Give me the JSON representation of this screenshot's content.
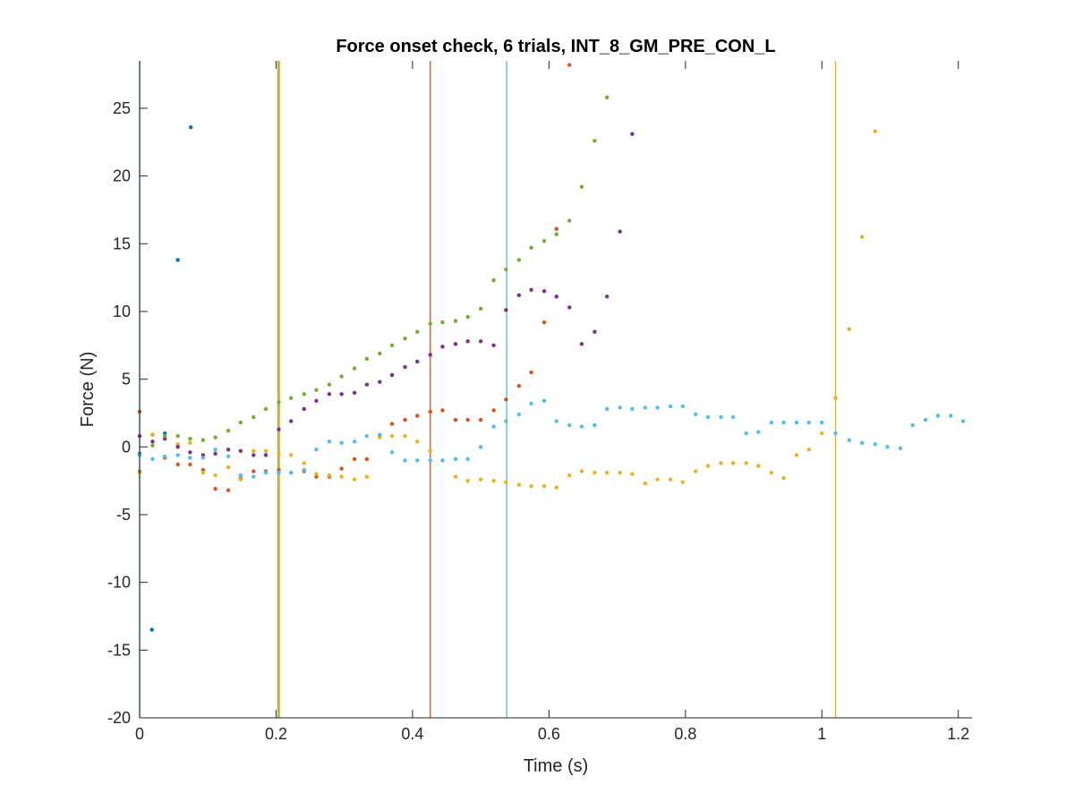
{
  "chart_data": {
    "type": "scatter",
    "title": "Force onset check, 6 trials, INT_8_GM_PRE_CON_L",
    "xlabel": "Time (s)",
    "ylabel": "Force (N)",
    "xlim": [
      0,
      1.22
    ],
    "ylim": [
      -20,
      28.5
    ],
    "grid": false,
    "legend": "none",
    "xticks": [
      0,
      0.2,
      0.4,
      0.6,
      0.8,
      1,
      1.2
    ],
    "xtick_labels": [
      "0",
      "0.2",
      "0.4",
      "0.6",
      "0.8",
      "1",
      "1.2"
    ],
    "yticks": [
      -20,
      -15,
      -10,
      -5,
      0,
      5,
      10,
      15,
      20,
      25
    ],
    "ytick_labels": [
      "-20",
      "-15",
      "-10",
      "-5",
      "0",
      "5",
      "10",
      "15",
      "20",
      "25"
    ],
    "onset_lines": [
      {
        "x": 0.0,
        "color": "#0072BD"
      },
      {
        "x": 0.203,
        "color": "#77AC30"
      },
      {
        "x": 0.205,
        "color": "#EDB120"
      },
      {
        "x": 0.426,
        "color": "#D95319"
      },
      {
        "x": 0.538,
        "color": "#4DBEEE"
      },
      {
        "x": 1.02,
        "color": "#EDB120"
      }
    ],
    "series": [
      {
        "color": "#0072BD",
        "x": [
          0.0,
          0.018,
          0.037,
          0.056,
          0.075
        ],
        "y": [
          -0.5,
          -13.5,
          1.0,
          13.8,
          23.6
        ]
      },
      {
        "color": "#D95319",
        "x": [
          0.0,
          0.019,
          0.037,
          0.056,
          0.074,
          0.093,
          0.111,
          0.13,
          0.148,
          0.167,
          0.185,
          0.204,
          0.222,
          0.241,
          0.259,
          0.278,
          0.296,
          0.315,
          0.333,
          0.352,
          0.37,
          0.389,
          0.407,
          0.426,
          0.444,
          0.463,
          0.481,
          0.5,
          0.519,
          0.537,
          0.556,
          0.574,
          0.593,
          0.611,
          0.63
        ],
        "y": [
          2.6,
          0.9,
          -0.8,
          -1.3,
          -1.3,
          -1.7,
          -3.1,
          -3.2,
          -2.3,
          -1.8,
          -1.8,
          -1.7,
          -1.9,
          -1.8,
          -2.2,
          -2.2,
          -1.6,
          -0.9,
          -0.9,
          0.8,
          1.7,
          2.0,
          2.3,
          2.6,
          2.7,
          2.0,
          2.0,
          2.0,
          2.7,
          3.5,
          4.5,
          5.5,
          9.2,
          16.1,
          28.2
        ]
      },
      {
        "color": "#EDB120",
        "x": [
          0.0,
          0.019,
          0.037,
          0.056,
          0.074,
          0.093,
          0.111,
          0.13,
          0.148,
          0.167,
          0.185,
          0.204,
          0.222,
          0.241,
          0.259,
          0.278,
          0.296,
          0.315,
          0.333,
          0.352,
          0.37,
          0.389,
          0.407,
          0.426,
          0.444,
          0.463,
          0.481,
          0.5,
          0.519,
          0.537,
          0.556,
          0.574,
          0.593,
          0.611,
          0.63,
          0.648,
          0.667,
          0.685,
          0.704,
          0.722,
          0.741,
          0.759,
          0.778,
          0.796,
          0.815,
          0.833,
          0.852,
          0.87,
          0.889,
          0.907,
          0.926,
          0.944,
          0.963,
          0.981,
          1.0,
          1.02,
          1.04,
          1.059,
          1.078
        ],
        "y": [
          -1.9,
          0.9,
          0.6,
          0.2,
          0.3,
          -1.9,
          -2.1,
          -1.5,
          -2.4,
          -0.3,
          -0.3,
          -0.5,
          -0.6,
          -1.2,
          -2.0,
          -2.1,
          -2.2,
          -2.4,
          -2.2,
          0.7,
          0.8,
          0.8,
          0.4,
          -0.3,
          -1.0,
          -2.2,
          -2.5,
          -2.4,
          -2.5,
          -2.6,
          -2.8,
          -2.9,
          -2.9,
          -3.0,
          -2.1,
          -1.8,
          -1.9,
          -1.9,
          -1.9,
          -2.0,
          -2.7,
          -2.4,
          -2.4,
          -2.6,
          -1.8,
          -1.4,
          -1.2,
          -1.2,
          -1.2,
          -1.4,
          -1.9,
          -2.3,
          -0.6,
          -0.2,
          1.0,
          3.6,
          8.7,
          15.5,
          23.3
        ]
      },
      {
        "color": "#7E2F8E",
        "x": [
          0.0,
          0.019,
          0.037,
          0.056,
          0.074,
          0.093,
          0.111,
          0.13,
          0.148,
          0.167,
          0.185,
          0.204,
          0.222,
          0.241,
          0.259,
          0.278,
          0.296,
          0.315,
          0.333,
          0.352,
          0.37,
          0.389,
          0.407,
          0.426,
          0.444,
          0.463,
          0.481,
          0.5,
          0.519,
          0.537,
          0.556,
          0.574,
          0.593,
          0.611,
          0.63,
          0.648,
          0.667,
          0.685,
          0.704,
          0.722
        ],
        "y": [
          0.8,
          0.4,
          0.6,
          0.0,
          -0.4,
          -0.6,
          -0.5,
          -0.2,
          -0.3,
          -0.6,
          -0.6,
          1.3,
          1.9,
          2.8,
          3.4,
          3.9,
          3.9,
          4.0,
          4.6,
          4.8,
          5.3,
          5.9,
          6.3,
          6.8,
          7.4,
          7.6,
          7.8,
          7.8,
          7.5,
          10.1,
          11.2,
          11.6,
          11.5,
          11.1,
          10.3,
          7.6,
          8.5,
          11.1,
          15.9,
          23.1
        ]
      },
      {
        "color": "#77AC30",
        "x": [
          0.0,
          0.019,
          0.037,
          0.056,
          0.074,
          0.093,
          0.111,
          0.13,
          0.148,
          0.167,
          0.185,
          0.204,
          0.222,
          0.241,
          0.259,
          0.278,
          0.296,
          0.315,
          0.333,
          0.352,
          0.37,
          0.389,
          0.407,
          0.426,
          0.444,
          0.463,
          0.481,
          0.5,
          0.519,
          0.537,
          0.556,
          0.574,
          0.593,
          0.611,
          0.63,
          0.648,
          0.667,
          0.685
        ],
        "y": [
          -1.8,
          0.1,
          0.8,
          0.8,
          0.6,
          0.5,
          0.7,
          1.2,
          1.8,
          2.2,
          2.8,
          3.3,
          3.6,
          3.9,
          4.2,
          4.6,
          5.2,
          5.8,
          6.5,
          6.9,
          7.5,
          8.0,
          8.5,
          9.1,
          9.2,
          9.3,
          9.6,
          10.2,
          12.3,
          13.1,
          13.8,
          14.7,
          15.2,
          15.7,
          16.7,
          19.2,
          22.6,
          25.8
        ]
      },
      {
        "color": "#4DBEEE",
        "x": [
          0.0,
          0.019,
          0.037,
          0.056,
          0.074,
          0.093,
          0.111,
          0.13,
          0.148,
          0.167,
          0.185,
          0.204,
          0.222,
          0.241,
          0.259,
          0.278,
          0.296,
          0.315,
          0.333,
          0.352,
          0.37,
          0.389,
          0.407,
          0.426,
          0.444,
          0.463,
          0.481,
          0.5,
          0.519,
          0.537,
          0.556,
          0.574,
          0.593,
          0.611,
          0.63,
          0.648,
          0.667,
          0.685,
          0.704,
          0.722,
          0.741,
          0.759,
          0.778,
          0.796,
          0.815,
          0.833,
          0.852,
          0.87,
          0.889,
          0.907,
          0.926,
          0.944,
          0.963,
          0.981,
          1.0,
          1.02,
          1.04,
          1.059,
          1.078,
          1.096,
          1.115,
          1.133,
          1.152,
          1.17,
          1.189,
          1.207
        ],
        "y": [
          -0.6,
          -0.9,
          -0.7,
          -0.6,
          -0.8,
          -0.8,
          -0.2,
          -0.7,
          -2.1,
          -2.2,
          -1.9,
          -1.9,
          -1.9,
          -1.7,
          -0.2,
          0.4,
          0.3,
          0.4,
          0.8,
          0.9,
          -0.4,
          -1.0,
          -1.0,
          -1.0,
          -1.0,
          -0.9,
          -0.9,
          0.0,
          1.5,
          1.9,
          2.4,
          3.2,
          3.4,
          1.9,
          1.6,
          1.5,
          1.6,
          2.8,
          2.9,
          2.8,
          2.9,
          2.9,
          3.0,
          3.0,
          2.4,
          2.2,
          2.2,
          2.2,
          1.0,
          1.1,
          1.8,
          1.8,
          1.8,
          1.8,
          1.8,
          1.0,
          0.5,
          0.3,
          0.2,
          0.0,
          -0.1,
          1.6,
          2.0,
          2.3,
          2.3,
          1.9
        ]
      }
    ]
  }
}
